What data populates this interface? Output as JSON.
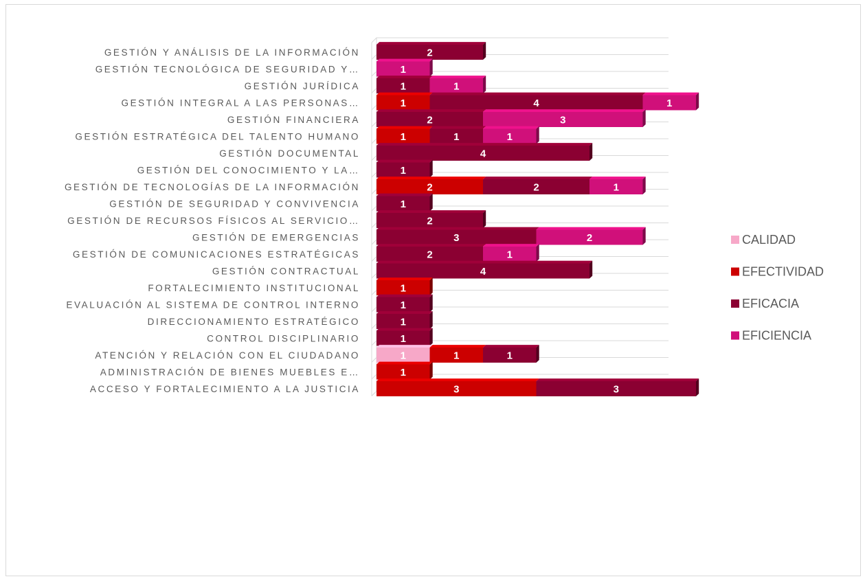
{
  "chart_data": {
    "type": "bar",
    "orientation": "horizontal",
    "stacked": true,
    "three_d": true,
    "categories": [
      "GESTIÓN Y ANÁLISIS DE LA INFORMACIÓN",
      "GESTIÓN TECNOLÓGICA DE SEGURIDAD Y…",
      "GESTIÓN JURÍDICA",
      "GESTIÓN INTEGRAL A LAS PERSONAS…",
      "GESTIÓN FINANCIERA",
      "GESTIÓN ESTRATÉGICA DEL TALENTO HUMANO",
      "GESTIÓN DOCUMENTAL",
      "GESTIÓN DEL CONOCIMIENTO Y LA…",
      "GESTIÓN DE TECNOLOGÍAS DE LA INFORMACIÓN",
      "GESTIÓN DE SEGURIDAD Y CONVIVENCIA",
      "GESTIÓN DE RECURSOS FÍSICOS AL SERVICIO…",
      "GESTIÓN DE EMERGENCIAS",
      "GESTIÓN DE COMUNICACIONES ESTRATÉGICAS",
      "GESTIÓN CONTRACTUAL",
      "FORTALECIMIENTO INSTITUCIONAL",
      "EVALUACIÓN AL SISTEMA DE CONTROL INTERNO",
      "DIRECCIONAMIENTO ESTRATÉGICO",
      "CONTROL DISCIPLINARIO",
      "ATENCIÓN Y RELACIÓN CON EL CIUDADANO",
      "ADMINISTRACIÓN DE BIENES MUEBLES E…",
      "ACCESO Y FORTALECIMIENTO A LA JUSTICIA"
    ],
    "series": [
      {
        "name": "CALIDAD",
        "color": "#f7a8c8",
        "values": [
          0,
          0,
          0,
          0,
          0,
          0,
          0,
          0,
          0,
          0,
          0,
          0,
          0,
          0,
          0,
          0,
          0,
          0,
          1,
          0,
          0
        ]
      },
      {
        "name": "EFECTIVIDAD",
        "color": "#cc0000",
        "values": [
          0,
          0,
          0,
          1,
          0,
          1,
          0,
          0,
          2,
          0,
          0,
          0,
          0,
          0,
          1,
          0,
          0,
          0,
          1,
          1,
          3
        ]
      },
      {
        "name": "EFICACIA",
        "color": "#8b0032",
        "values": [
          2,
          0,
          1,
          4,
          2,
          1,
          4,
          1,
          2,
          1,
          2,
          3,
          2,
          4,
          0,
          1,
          1,
          1,
          1,
          0,
          3
        ]
      },
      {
        "name": "EFICIENCIA",
        "color": "#d0107a",
        "values": [
          0,
          1,
          1,
          1,
          3,
          1,
          0,
          0,
          1,
          0,
          0,
          2,
          1,
          0,
          0,
          0,
          0,
          0,
          0,
          0,
          0
        ]
      }
    ],
    "xlim": [
      0,
      6
    ],
    "grid": true,
    "legend_position": "right",
    "title": "",
    "xlabel": "",
    "ylabel": ""
  }
}
